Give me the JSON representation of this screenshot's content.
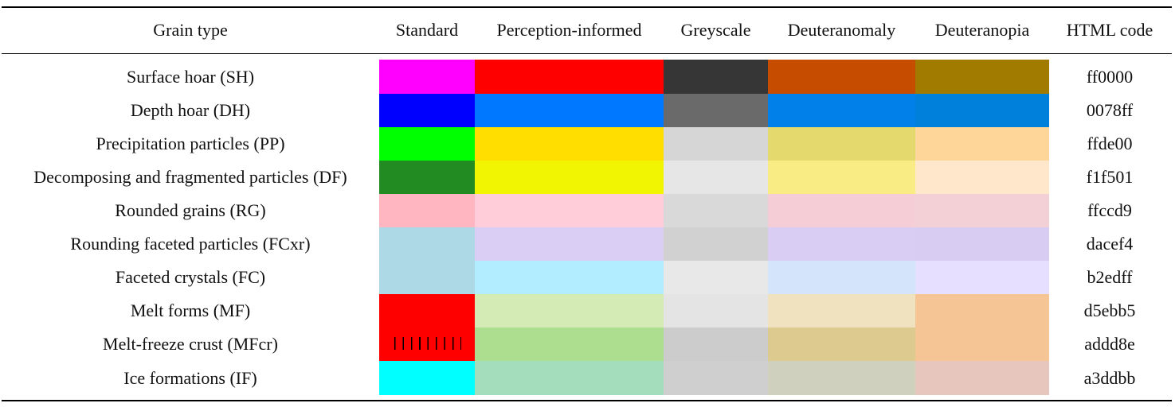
{
  "headers": {
    "grain_type": "Grain type",
    "standard": "Standard",
    "perception": "Perception-informed",
    "greyscale": "Greyscale",
    "deuteranomaly": "Deuteranomaly",
    "deuteranopia": "Deuteranopia",
    "html_code": "HTML code"
  },
  "rows": [
    {
      "label": "Surface hoar (SH)",
      "code": "ff0000"
    },
    {
      "label": "Depth hoar (DH)",
      "code": "0078ff"
    },
    {
      "label": "Precipitation particles (PP)",
      "code": "ffde00"
    },
    {
      "label": "Decomposing and fragmented particles (DF)",
      "code": "f1f501"
    },
    {
      "label": "Rounded grains (RG)",
      "code": "ffccd9"
    },
    {
      "label": "Rounding faceted particles (FCxr)",
      "code": "dacef4"
    },
    {
      "label": "Faceted crystals (FC)",
      "code": "b2edff"
    },
    {
      "label": "Melt forms (MF)",
      "code": "d5ebb5"
    },
    {
      "label": "Melt-freeze crust (MFcr)",
      "code": "addd8e"
    },
    {
      "label": "Ice formations (IF)",
      "code": "a3ddbb"
    }
  ],
  "colors": {
    "standard": [
      "#ff00ff",
      "#0000ff",
      "#00ff00",
      "#228b22",
      "#ffb6c1",
      "#add8e6",
      "#add8e6",
      "#ff0000",
      "#ff0000",
      "#00ffff"
    ],
    "perception": [
      "#ff0000",
      "#0078ff",
      "#ffde00",
      "#f1f501",
      "#ffccd9",
      "#dacef4",
      "#b2edff",
      "#d5ebb5",
      "#addd8e",
      "#a3ddbb"
    ],
    "greyscale": [
      "#363636",
      "#6a6a6a",
      "#d6d6d6",
      "#e6e6e6",
      "#d9d9d9",
      "#d1d1d1",
      "#e8e8e8",
      "#e4e4e4",
      "#cccccc",
      "#cfcfcf"
    ],
    "deuteranomaly": [
      "#c64c00",
      "#0080e8",
      "#e3d96c",
      "#f9ec84",
      "#f5cdd7",
      "#d9cdf3",
      "#d4e5fb",
      "#f0e1bf",
      "#dcca8f",
      "#cfd0bd"
    ],
    "deuteranopia": [
      "#a17a00",
      "#0080da",
      "#ffd699",
      "#ffe7cc",
      "#f2d0d6",
      "#d8ccf2",
      "#e6dfff",
      "#f5c595",
      "#f5c595",
      "#e6c6bd"
    ]
  }
}
